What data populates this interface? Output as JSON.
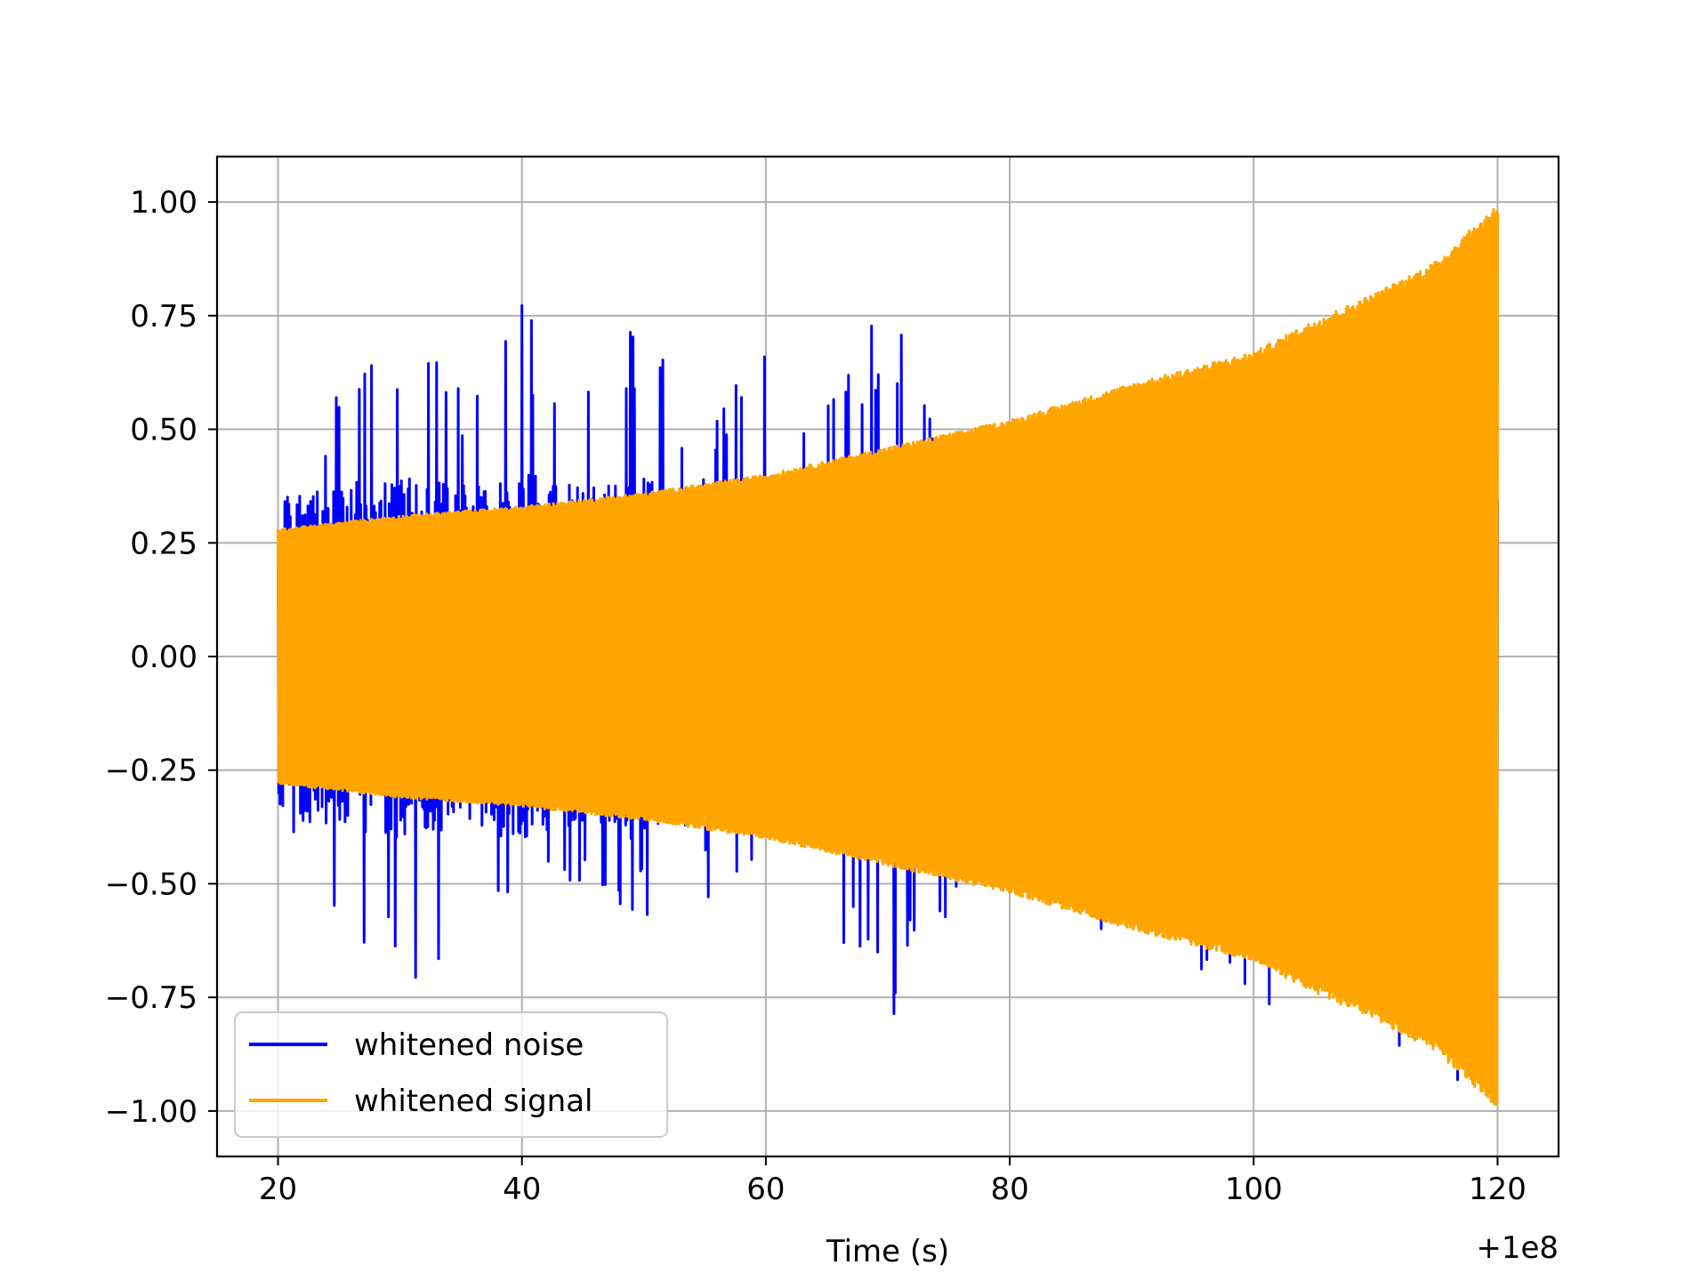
{
  "chart_data": {
    "type": "line",
    "title": "",
    "xlabel": "Time (s)",
    "ylabel": "",
    "x_offset_label": "+1e8",
    "xlim": [
      15,
      125
    ],
    "ylim": [
      -1.1,
      1.1
    ],
    "x_ticks": [
      20,
      40,
      60,
      80,
      100,
      120
    ],
    "x_tick_labels": [
      "20",
      "40",
      "60",
      "80",
      "100",
      "120"
    ],
    "y_ticks": [
      1.0,
      0.75,
      0.5,
      0.25,
      0.0,
      -0.25,
      -0.5,
      -0.75,
      -1.0
    ],
    "y_tick_labels": [
      "1.00",
      "0.75",
      "0.50",
      "0.25",
      "0.00",
      "−0.25",
      "−0.50",
      "−0.75",
      "−1.00"
    ],
    "grid": true,
    "legend_position": "lower-left",
    "x_range": [
      20,
      120
    ],
    "series": [
      {
        "name": "whitened noise",
        "color": "#0000ff",
        "envelope_points": {
          "x": [
            20,
            25,
            30,
            35,
            40,
            45,
            50,
            55,
            60,
            65,
            70,
            75,
            80,
            85,
            90,
            95,
            100,
            105,
            110,
            115,
            120
          ],
          "upper": [
            0.43,
            0.58,
            0.76,
            0.6,
            0.78,
            0.57,
            0.79,
            0.5,
            0.74,
            0.57,
            0.83,
            0.5,
            0.52,
            0.55,
            0.64,
            0.66,
            0.62,
            0.7,
            0.8,
            0.92,
            1.0
          ],
          "lower": [
            -0.46,
            -0.66,
            -0.76,
            -0.63,
            -0.55,
            -0.58,
            -0.6,
            -0.56,
            -0.6,
            -0.62,
            -0.85,
            -0.56,
            -0.54,
            -0.64,
            -0.63,
            -0.74,
            -0.78,
            -0.75,
            -0.83,
            -0.92,
            -1.0
          ]
        }
      },
      {
        "name": "whitened signal",
        "color": "#ffa500",
        "envelope_points": {
          "x": [
            20,
            30,
            40,
            50,
            60,
            70,
            80,
            90,
            100,
            105,
            110,
            115,
            119,
            120
          ],
          "upper": [
            0.28,
            0.31,
            0.33,
            0.36,
            0.4,
            0.46,
            0.52,
            0.6,
            0.67,
            0.74,
            0.8,
            0.87,
            0.97,
            1.0
          ],
          "lower": [
            -0.28,
            -0.31,
            -0.33,
            -0.36,
            -0.4,
            -0.46,
            -0.52,
            -0.6,
            -0.67,
            -0.74,
            -0.8,
            -0.87,
            -0.97,
            -1.0
          ]
        }
      }
    ]
  }
}
